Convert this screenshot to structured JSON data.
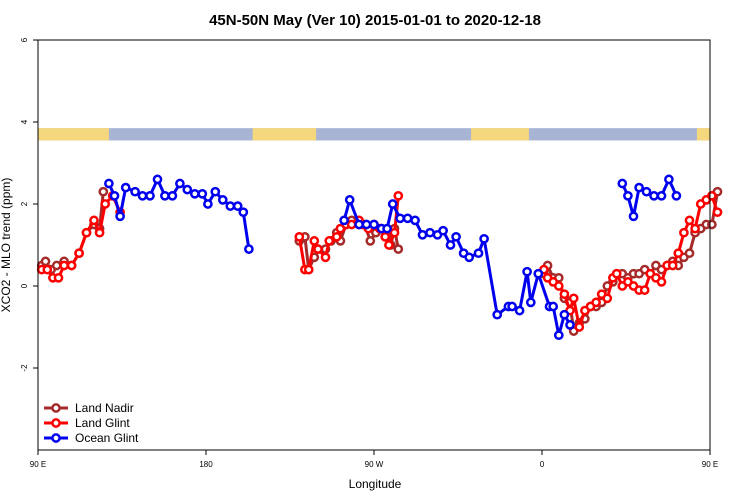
{
  "chart_data": {
    "type": "line",
    "title": "45N-50N May (Ver 10)   2015-01-01 to 2020-12-18",
    "xlabel": "Longitude",
    "ylabel": "XCO2 - MLO trend (ppm)",
    "xlim": [
      90,
      450
    ],
    "ylim": [
      -4,
      6
    ],
    "x_ticks": [
      {
        "value": 90,
        "label": "90 E"
      },
      {
        "value": 180,
        "label": "180"
      },
      {
        "value": 270,
        "label": "90 W"
      },
      {
        "value": 360,
        "label": "0"
      },
      {
        "value": 450,
        "label": "90 E"
      },
      {
        "value": 540,
        "label": "180"
      }
    ],
    "y_ticks": [
      {
        "value": -2,
        "label": "-2"
      },
      {
        "value": 0,
        "label": "0"
      },
      {
        "value": 2,
        "label": "2"
      },
      {
        "value": 4,
        "label": "4"
      },
      {
        "value": 6,
        "label": "6"
      }
    ],
    "land_mask_band": {
      "y_range": [
        3.55,
        3.85
      ],
      "land_color": "#f5d77d",
      "ocean_color": "#a8b4d4",
      "land_segments": [
        [
          90,
          128
        ],
        [
          205,
          239
        ],
        [
          322,
          353
        ],
        [
          443,
          501
        ]
      ]
    },
    "legend_position": "bottom-left",
    "series": [
      {
        "name": "Land Nadir",
        "color": "#a52a2a",
        "points": [
          [
            92,
            0.5
          ],
          [
            94,
            0.6
          ],
          [
            97,
            0.4
          ],
          [
            100,
            0.5
          ],
          [
            104,
            0.6
          ],
          [
            108,
            0.5
          ],
          [
            112,
            0.8
          ],
          [
            116,
            1.3
          ],
          [
            120,
            1.5
          ],
          [
            123,
            1.4
          ],
          [
            125,
            2.3
          ],
          [
            230,
            1.1
          ],
          [
            233,
            1.2
          ],
          [
            235,
            0.4
          ],
          [
            238,
            0.7
          ],
          [
            240,
            0.9
          ],
          [
            244,
            0.9
          ],
          [
            247,
            1.1
          ],
          [
            250,
            1.3
          ],
          [
            252,
            1.1
          ],
          [
            255,
            1.5
          ],
          [
            258,
            1.6
          ],
          [
            262,
            1.5
          ],
          [
            265,
            1.5
          ],
          [
            268,
            1.1
          ],
          [
            271,
            1.3
          ],
          [
            274,
            1.4
          ],
          [
            277,
            1.2
          ],
          [
            279,
            1.0
          ],
          [
            281,
            1.4
          ],
          [
            283,
            0.9
          ],
          [
            361,
            0.3
          ],
          [
            363,
            0.5
          ],
          [
            366,
            0.2
          ],
          [
            369,
            0.2
          ],
          [
            372,
            -0.3
          ],
          [
            375,
            -0.4
          ],
          [
            377,
            -1.1
          ],
          [
            380,
            -0.9
          ],
          [
            383,
            -0.8
          ],
          [
            386,
            -0.5
          ],
          [
            389,
            -0.5
          ],
          [
            392,
            -0.4
          ],
          [
            395,
            0.0
          ],
          [
            398,
            0.1
          ],
          [
            400,
            0.3
          ],
          [
            403,
            0.3
          ],
          [
            406,
            0.2
          ],
          [
            409,
            0.3
          ],
          [
            412,
            0.3
          ],
          [
            415,
            0.4
          ],
          [
            418,
            0.3
          ],
          [
            421,
            0.5
          ],
          [
            424,
            0.4
          ],
          [
            427,
            0.5
          ],
          [
            430,
            0.6
          ],
          [
            433,
            0.5
          ],
          [
            436,
            0.7
          ],
          [
            439,
            0.8
          ],
          [
            442,
            1.3
          ],
          [
            445,
            1.4
          ],
          [
            448,
            1.5
          ],
          [
            451,
            1.5
          ],
          [
            454,
            2.3
          ]
        ]
      },
      {
        "name": "Land Glint",
        "color": "#ff0000",
        "points": [
          [
            92,
            0.4
          ],
          [
            95,
            0.4
          ],
          [
            98,
            0.2
          ],
          [
            101,
            0.2
          ],
          [
            104,
            0.5
          ],
          [
            108,
            0.5
          ],
          [
            112,
            0.8
          ],
          [
            116,
            1.3
          ],
          [
            120,
            1.6
          ],
          [
            123,
            1.3
          ],
          [
            126,
            2.0
          ],
          [
            130,
            2.2
          ],
          [
            134,
            1.8
          ],
          [
            230,
            1.2
          ],
          [
            233,
            0.4
          ],
          [
            235,
            0.4
          ],
          [
            238,
            1.1
          ],
          [
            240,
            0.9
          ],
          [
            244,
            0.7
          ],
          [
            246,
            1.1
          ],
          [
            250,
            1.2
          ],
          [
            252,
            1.4
          ],
          [
            255,
            1.5
          ],
          [
            258,
            1.5
          ],
          [
            262,
            1.6
          ],
          [
            264,
            1.5
          ],
          [
            267,
            1.4
          ],
          [
            270,
            1.5
          ],
          [
            273,
            1.4
          ],
          [
            276,
            1.2
          ],
          [
            278,
            1.0
          ],
          [
            281,
            1.3
          ],
          [
            283,
            2.2
          ],
          [
            361,
            0.4
          ],
          [
            363,
            0.2
          ],
          [
            366,
            0.1
          ],
          [
            369,
            0.0
          ],
          [
            372,
            -0.2
          ],
          [
            375,
            -0.6
          ],
          [
            377,
            -0.3
          ],
          [
            380,
            -1.0
          ],
          [
            383,
            -0.6
          ],
          [
            386,
            -0.5
          ],
          [
            389,
            -0.4
          ],
          [
            392,
            -0.2
          ],
          [
            395,
            -0.3
          ],
          [
            398,
            0.2
          ],
          [
            400,
            0.3
          ],
          [
            403,
            0.0
          ],
          [
            406,
            0.1
          ],
          [
            409,
            0.0
          ],
          [
            412,
            -0.1
          ],
          [
            415,
            -0.1
          ],
          [
            418,
            0.3
          ],
          [
            421,
            0.2
          ],
          [
            424,
            0.1
          ],
          [
            427,
            0.5
          ],
          [
            430,
            0.5
          ],
          [
            433,
            0.8
          ],
          [
            436,
            1.3
          ],
          [
            439,
            1.6
          ],
          [
            442,
            1.4
          ],
          [
            445,
            2.0
          ],
          [
            448,
            2.1
          ],
          [
            451,
            2.2
          ],
          [
            454,
            1.8
          ]
        ]
      },
      {
        "name": "Ocean Glint",
        "color": "#0000ee",
        "points": [
          [
            128,
            2.5
          ],
          [
            131,
            2.2
          ],
          [
            134,
            1.7
          ],
          [
            137,
            2.4
          ],
          [
            142,
            2.3
          ],
          [
            146,
            2.2
          ],
          [
            150,
            2.2
          ],
          [
            154,
            2.6
          ],
          [
            158,
            2.2
          ],
          [
            162,
            2.2
          ],
          [
            166,
            2.5
          ],
          [
            170,
            2.35
          ],
          [
            174,
            2.25
          ],
          [
            178,
            2.25
          ],
          [
            181,
            2.0
          ],
          [
            185,
            2.3
          ],
          [
            189,
            2.1
          ],
          [
            193,
            1.95
          ],
          [
            197,
            1.95
          ],
          [
            200,
            1.8
          ],
          [
            203,
            0.9
          ],
          [
            254,
            1.6
          ],
          [
            257,
            2.1
          ],
          [
            262,
            1.5
          ],
          [
            266,
            1.5
          ],
          [
            270,
            1.5
          ],
          [
            274,
            1.4
          ],
          [
            277,
            1.4
          ],
          [
            280,
            2.0
          ],
          [
            284,
            1.65
          ],
          [
            288,
            1.65
          ],
          [
            292,
            1.6
          ],
          [
            296,
            1.25
          ],
          [
            300,
            1.3
          ],
          [
            304,
            1.25
          ],
          [
            307,
            1.35
          ],
          [
            311,
            1.0
          ],
          [
            314,
            1.2
          ],
          [
            318,
            0.8
          ],
          [
            321,
            0.7
          ],
          [
            326,
            0.8
          ],
          [
            329,
            1.15
          ],
          [
            336,
            -0.7
          ],
          [
            342,
            -0.5
          ],
          [
            344,
            -0.5
          ],
          [
            348,
            -0.6
          ],
          [
            352,
            0.35
          ],
          [
            354,
            -0.4
          ],
          [
            358,
            0.3
          ],
          [
            364,
            -0.5
          ],
          [
            366,
            -0.5
          ],
          [
            369,
            -1.2
          ],
          [
            372,
            -0.7
          ],
          [
            375,
            -0.95
          ],
          [
            403,
            2.5
          ],
          [
            406,
            2.2
          ],
          [
            409,
            1.7
          ],
          [
            412,
            2.4
          ],
          [
            416,
            2.3
          ],
          [
            420,
            2.2
          ],
          [
            424,
            2.2
          ],
          [
            428,
            2.6
          ],
          [
            432,
            2.2
          ]
        ]
      }
    ]
  }
}
